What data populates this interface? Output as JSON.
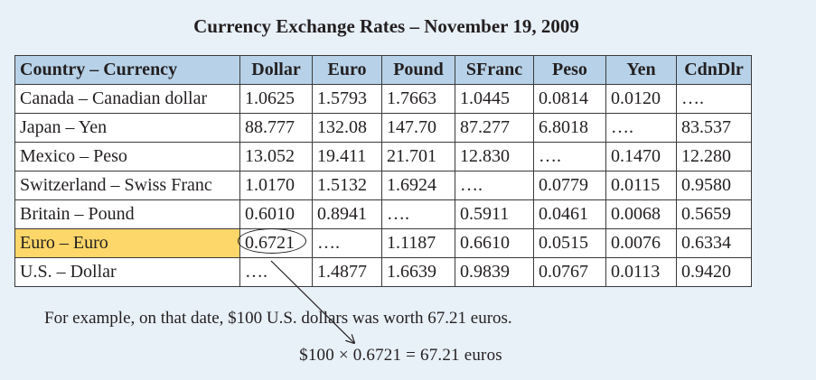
{
  "title": "Currency Exchange Rates – November 19, 2009",
  "table": {
    "headers": [
      "Country – Currency",
      "Dollar",
      "Euro",
      "Pound",
      "SFranc",
      "Peso",
      "Yen",
      "CdnDlr"
    ],
    "rows": [
      {
        "country": "Canada – Canadian dollar",
        "cells": [
          "1.0625",
          "1.5793",
          "1.7663",
          "1.0445",
          "0.0814",
          "0.0120",
          "…."
        ]
      },
      {
        "country": "Japan – Yen",
        "cells": [
          "88.777",
          "132.08",
          "147.70",
          "87.277",
          "6.8018",
          "….",
          "83.537"
        ]
      },
      {
        "country": "Mexico – Peso",
        "cells": [
          "13.052",
          "19.411",
          "21.701",
          "12.830",
          "….",
          "0.1470",
          "12.280"
        ]
      },
      {
        "country": "Switzerland – Swiss Franc",
        "cells": [
          "1.0170",
          "1.5132",
          "1.6924",
          "….",
          "0.0779",
          "0.0115",
          "0.9580"
        ]
      },
      {
        "country": "Britain – Pound",
        "cells": [
          "0.6010",
          "0.8941",
          "….",
          "0.5911",
          "0.0461",
          "0.0068",
          "0.5659"
        ]
      },
      {
        "country": "Euro – Euro",
        "cells": [
          "0.6721",
          "….",
          "1.1187",
          "0.6610",
          "0.0515",
          "0.0076",
          "0.6334"
        ]
      },
      {
        "country": "U.S. – Dollar",
        "cells": [
          "….",
          "1.4877",
          "1.6639",
          "0.9839",
          "0.0767",
          "0.0113",
          "0.9420"
        ]
      }
    ]
  },
  "example": {
    "sentence": "For example, on that date, $100 U.S. dollars was worth 67.21 euros.",
    "equation": "$100 × 0.6721 = 67.21 euros"
  },
  "colors": {
    "background": "#e8f0f8",
    "header_fill": "#b7d2e8",
    "highlight_fill": "#fdd76a"
  }
}
